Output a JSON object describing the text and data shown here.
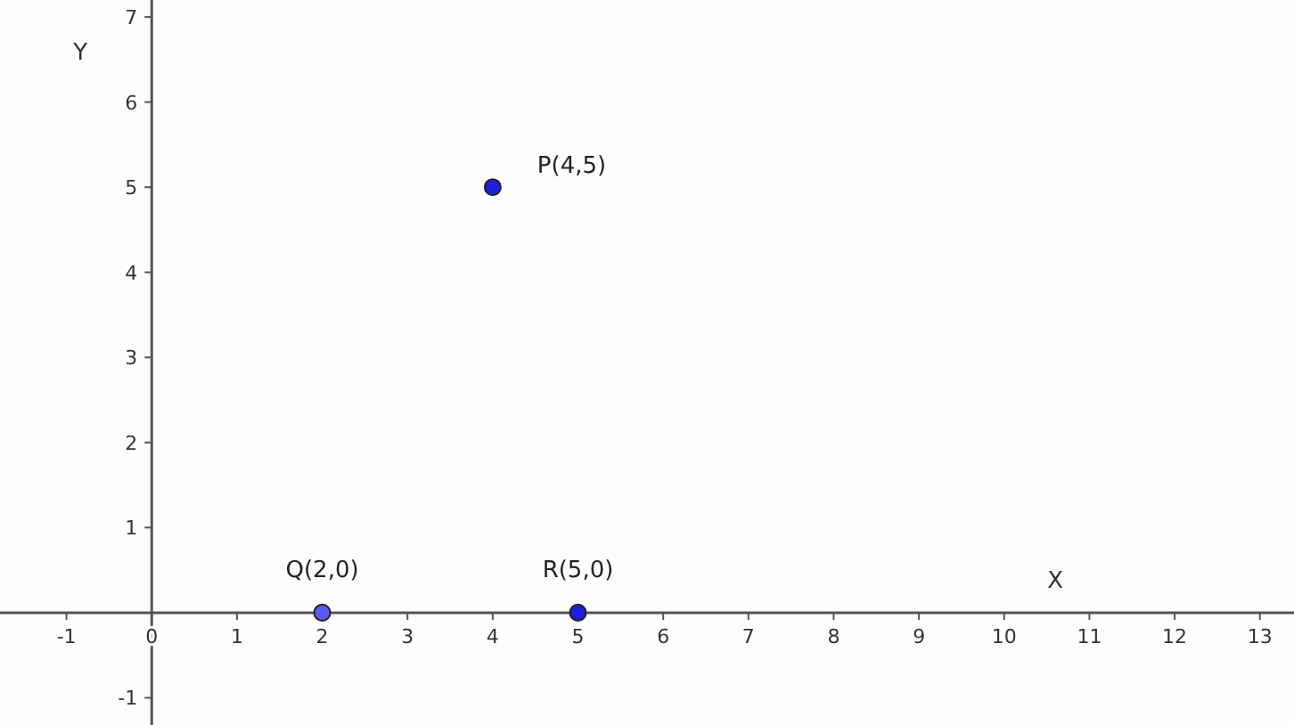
{
  "chart_data": {
    "type": "scatter",
    "xlabel": "X",
    "ylabel": "Y",
    "x": [
      4,
      2,
      5
    ],
    "values": [
      5,
      0,
      0
    ],
    "colors": [
      "#1e1edc",
      "#5a5af0",
      "#1e1edc"
    ],
    "marker": "circle",
    "grid": false,
    "xlim": [
      -1.78,
      13.4
    ],
    "ylim": [
      -1.32,
      7.2
    ],
    "xticks": [
      -1,
      0,
      1,
      2,
      3,
      4,
      5,
      6,
      7,
      8,
      9,
      10,
      11,
      12,
      13
    ],
    "yticks": [
      -1,
      1,
      2,
      3,
      4,
      5,
      6,
      7
    ],
    "annotations": [
      {
        "text": "P(4,5)",
        "x": 4,
        "y": 5
      },
      {
        "text": "Q(2,0)",
        "x": 2,
        "y": 0
      },
      {
        "text": "R(5,0)",
        "x": 5,
        "y": 0
      }
    ]
  }
}
